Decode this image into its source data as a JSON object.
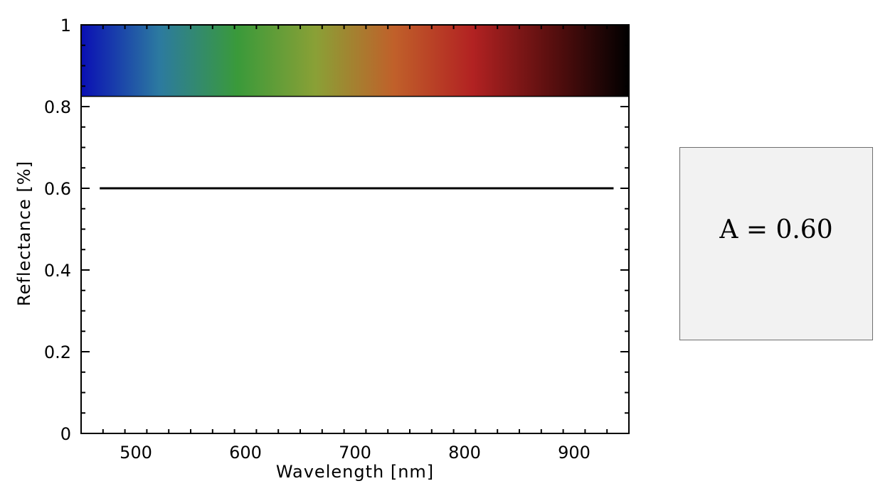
{
  "chart_data": {
    "type": "line",
    "xlabel": "Wavelength [nm]",
    "ylabel": "Reflectance [%]",
    "xlim": [
      450,
      950
    ],
    "ylim": [
      0,
      1
    ],
    "x_ticks": [
      500,
      600,
      700,
      800,
      900
    ],
    "x_tick_labels": [
      "500",
      "600",
      "700",
      "800",
      "900"
    ],
    "y_ticks": [
      0,
      0.2,
      0.4,
      0.6,
      0.8,
      1
    ],
    "y_tick_labels": [
      "0",
      "0.2",
      "0.4",
      "0.6",
      "0.8",
      "1"
    ],
    "series": [
      {
        "x": [
          467,
          936
        ],
        "y": [
          0.6,
          0.6
        ],
        "color": "#000000"
      }
    ],
    "spectrum_band": {
      "y_range": [
        0.825,
        1.0
      ],
      "colors": [
        "#0a0fb4",
        "#2c7aa0",
        "#3a9a3a",
        "#8aa036",
        "#c0602a",
        "#b22222",
        "#5a0f0f",
        "#000000"
      ]
    },
    "grid": false
  },
  "value_box": {
    "text": "A = 0.60"
  }
}
